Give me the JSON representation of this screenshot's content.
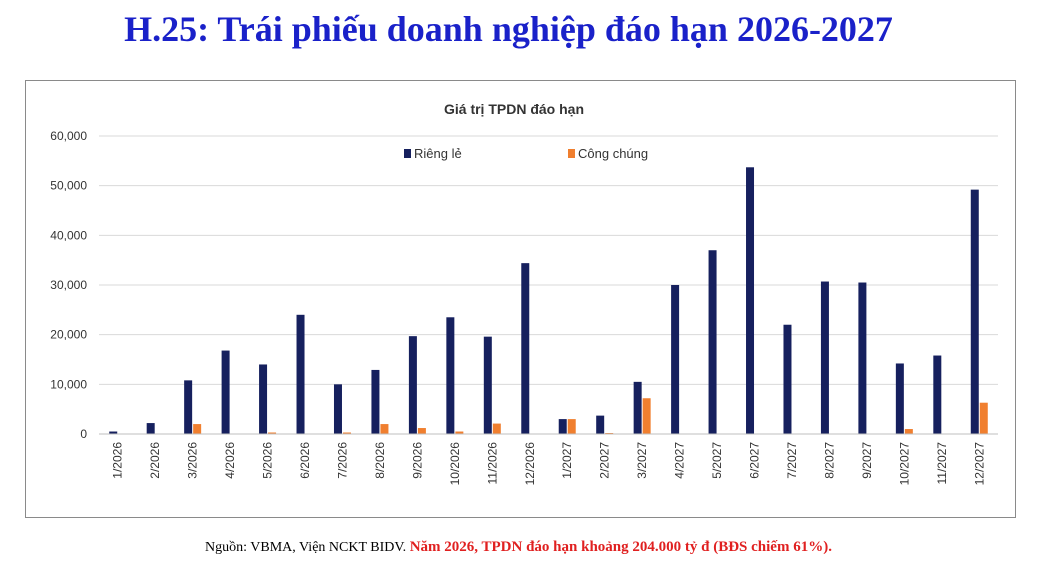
{
  "header": {
    "title": "H.25: Trái phiếu doanh nghiệp đáo hạn 2026-2027"
  },
  "footer": {
    "source": "Nguồn: VBMA, Viện NCKT BIDV.",
    "note": "Năm 2026, TPDN đáo hạn khoảng 204.000 tỷ đ (BĐS chiếm 61%)."
  },
  "colors": {
    "title": "#1a21c9",
    "private": "#16205e",
    "public": "#f07f2f",
    "note": "#e02020"
  },
  "chart_data": {
    "type": "bar",
    "title": "Giá trị TPDN đáo hạn",
    "xlabel": "",
    "ylabel": "",
    "ylim": [
      0,
      60000
    ],
    "yticks": [
      "0",
      "10,000",
      "20,000",
      "30,000",
      "40,000",
      "50,000",
      "60,000"
    ],
    "grid": true,
    "legend_position": "top-center",
    "categories": [
      "1/2026",
      "2/2026",
      "3/2026",
      "4/2026",
      "5/2026",
      "6/2026",
      "7/2026",
      "8/2026",
      "9/2026",
      "10/2026",
      "11/2026",
      "12/2026",
      "1/2027",
      "2/2027",
      "3/2027",
      "4/2027",
      "5/2027",
      "6/2027",
      "7/2027",
      "8/2027",
      "9/2027",
      "10/2027",
      "11/2027",
      "12/2027"
    ],
    "series": [
      {
        "name": "Riêng lẻ",
        "color": "#16205e",
        "values": [
          500,
          2200,
          10800,
          16800,
          14000,
          24000,
          10000,
          12900,
          19700,
          23500,
          19600,
          34400,
          3000,
          3700,
          10500,
          30000,
          37000,
          53700,
          22000,
          30700,
          30500,
          14200,
          15800,
          49200
        ]
      },
      {
        "name": "Công chúng",
        "color": "#f07f2f",
        "values": [
          0,
          0,
          2000,
          0,
          300,
          0,
          300,
          2000,
          1200,
          500,
          2100,
          0,
          3000,
          200,
          7200,
          0,
          0,
          0,
          0,
          0,
          0,
          1000,
          0,
          6300
        ]
      }
    ]
  }
}
